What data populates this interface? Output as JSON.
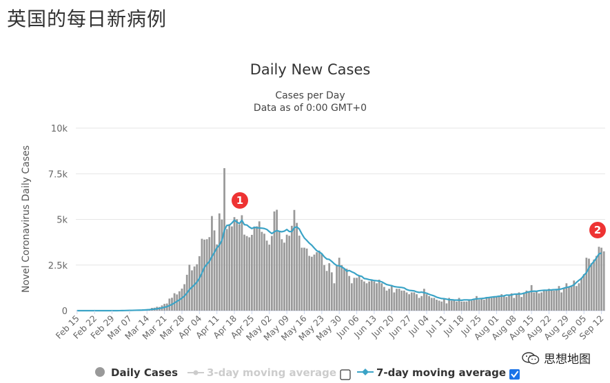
{
  "page": {
    "heading": "英国的每日新病例"
  },
  "watermark": {
    "text": "思想地图",
    "icon": "wechat-icon"
  },
  "chart_data": {
    "type": "bar",
    "title": "Daily New Cases",
    "subtitle_lines": [
      "Cases per Day",
      "Data as of 0:00 GMT+0"
    ],
    "ylabel": "Novel Coronavirus Daily Cases",
    "xlabel": "",
    "ylim": [
      0,
      10000
    ],
    "y_ticks": [
      0,
      2500,
      5000,
      7500,
      10000
    ],
    "y_tick_labels": [
      "0",
      "2.5k",
      "5k",
      "7.5k",
      "10k"
    ],
    "x_tick_labels": [
      "Feb 15",
      "Feb 22",
      "Feb 29",
      "Mar 07",
      "Mar 14",
      "Mar 21",
      "Mar 28",
      "Apr 04",
      "Apr 11",
      "Apr 18",
      "Apr 25",
      "May 02",
      "May 09",
      "May 16",
      "May 23",
      "May 30",
      "Jun 06",
      "Jun 13",
      "Jun 20",
      "Jun 27",
      "Jul 04",
      "Jul 11",
      "Jul 18",
      "Jul 25",
      "Aug 01",
      "Aug 08",
      "Aug 15",
      "Aug 22",
      "Aug 29",
      "Sep 05",
      "Sep 12"
    ],
    "grid": true,
    "legend_placement": "bottom",
    "colors": {
      "bars": "#999999",
      "moving_average": "#3aa3c6",
      "grid": "#e6e6e6",
      "marker": "#ee3333"
    },
    "series": [
      {
        "name": "Daily Cases",
        "kind": "bar",
        "values": [
          0,
          0,
          0,
          0,
          0,
          0,
          0,
          0,
          0,
          0,
          0,
          0,
          0,
          0,
          0,
          0,
          4,
          13,
          14,
          23,
          25,
          17,
          23,
          35,
          42,
          42,
          46,
          64,
          82,
          80,
          152,
          162,
          213,
          202,
          289,
          372,
          393,
          663,
          707,
          956,
          889,
          1062,
          1210,
          1450,
          1966,
          2514,
          2208,
          2422,
          2543,
          2986,
          3939,
          3893,
          3915,
          4029,
          5185,
          4398,
          3630,
          5329,
          4990,
          7807,
          4473,
          4744,
          4616,
          5125,
          5011,
          4723,
          5228,
          4165,
          4089,
          4018,
          4153,
          4609,
          4618,
          4893,
          4318,
          4216,
          3838,
          3618,
          4095,
          5437,
          5527,
          4325,
          3915,
          3726,
          4163,
          4103,
          4649,
          5518,
          4809,
          4110,
          3450,
          3450,
          3403,
          3001,
          2956,
          3073,
          3202,
          3290,
          3101,
          2500,
          2177,
          2600,
          2100,
          1500,
          2500,
          2900,
          2500,
          2300,
          2300,
          1900,
          1500,
          1800,
          1800,
          1900,
          1700,
          1600,
          1500,
          1600,
          1700,
          1600,
          1500,
          1700,
          1500,
          1300,
          1100,
          1200,
          1400,
          1000,
          1200,
          1200,
          1100,
          1100,
          1000,
          900,
          1000,
          1000,
          900,
          700,
          800,
          1200,
          900,
          800,
          700,
          700,
          600,
          550,
          500,
          650,
          400,
          700,
          550,
          600,
          500,
          700,
          500,
          500,
          500,
          600,
          550,
          600,
          800,
          600,
          700,
          600,
          750,
          700,
          700,
          800,
          750,
          800,
          900,
          850,
          750,
          850,
          950,
          700,
          900,
          1000,
          750,
          1000,
          1100,
          1050,
          1400,
          1000,
          1050,
          950,
          1000,
          1150,
          1100,
          1200,
          1150,
          1100,
          1200,
          1350,
          1000,
          1250,
          1500,
          1300,
          1350,
          1650,
          1350,
          1500,
          1800,
          2000,
          2900,
          2850,
          2600,
          2800,
          3000,
          3500,
          3450,
          3250
        ]
      },
      {
        "name": "3-day moving average",
        "kind": "line",
        "visible": false
      },
      {
        "name": "7-day moving average",
        "kind": "line",
        "visible": true,
        "values": [
          0,
          0,
          0,
          0,
          0,
          0,
          0,
          0,
          0,
          0,
          0,
          0,
          0,
          0,
          0,
          0,
          1,
          2,
          4,
          8,
          11,
          14,
          17,
          22,
          26,
          29,
          33,
          40,
          48,
          59,
          70,
          85,
          103,
          124,
          151,
          185,
          220,
          278,
          340,
          421,
          510,
          593,
          690,
          804,
          965,
          1156,
          1285,
          1422,
          1567,
          1780,
          2058,
          2374,
          2546,
          2700,
          2961,
          3189,
          3441,
          3597,
          3845,
          4400,
          4675,
          4680,
          4801,
          4960,
          4854,
          4770,
          4954,
          4712,
          4692,
          4580,
          4500,
          4562,
          4548,
          4530,
          4520,
          4500,
          4449,
          4330,
          4225,
          4320,
          4389,
          4346,
          4321,
          4357,
          4449,
          4335,
          4336,
          4548,
          4590,
          4472,
          4210,
          3987,
          3850,
          3700,
          3585,
          3430,
          3285,
          3213,
          3125,
          2950,
          2830,
          2808,
          2700,
          2570,
          2475,
          2460,
          2400,
          2310,
          2164,
          2200,
          2129,
          2071,
          1974,
          1911,
          1879,
          1760,
          1740,
          1700,
          1680,
          1650,
          1640,
          1620,
          1580,
          1505,
          1430,
          1400,
          1371,
          1320,
          1300,
          1286,
          1271,
          1243,
          1157,
          1114,
          1100,
          1086,
          1029,
          1000,
          1016,
          986,
          957,
          897,
          850,
          807,
          739,
          700,
          664,
          657,
          629,
          600,
          600,
          585,
          579,
          579,
          571,
          593,
          593,
          586,
          593,
          629,
          643,
          657,
          664,
          680,
          707,
          721,
          743,
          754,
          771,
          793,
          800,
          814,
          857,
          850,
          864,
          900,
          907,
          914,
          921,
          957,
          1000,
          1036,
          1057,
          1071,
          1061,
          1093,
          1107,
          1121,
          1121,
          1129,
          1136,
          1150,
          1150,
          1164,
          1193,
          1236,
          1271,
          1300,
          1350,
          1414,
          1550,
          1664,
          1764,
          1943,
          2086,
          2343,
          2543,
          2700,
          2886,
          3107,
          3157
        ]
      }
    ],
    "annotations": [
      {
        "label": "1",
        "near": "Apr 18"
      },
      {
        "label": "2",
        "near": "Sep 12"
      }
    ]
  },
  "legend": {
    "items": [
      {
        "label": "Daily Cases",
        "icon": "circle-marker-icon",
        "enabled": true
      },
      {
        "label": "3-day moving average",
        "icon": "line-marker-icon",
        "enabled": false,
        "checked": false
      },
      {
        "label": "7-day moving average",
        "icon": "line-marker-icon",
        "enabled": true,
        "checked": true
      }
    ]
  }
}
